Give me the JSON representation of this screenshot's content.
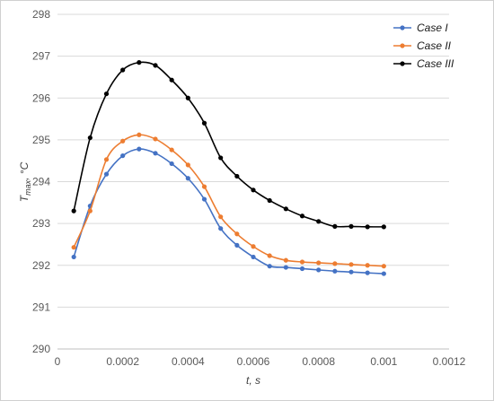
{
  "chart_data": {
    "type": "line",
    "title": "",
    "xlabel": "t, s",
    "ylabel_main": "T",
    "ylabel_sub": "max",
    "ylabel_unit": ", °C",
    "xlim": [
      0,
      0.0012
    ],
    "ylim": [
      290,
      298
    ],
    "x_ticks": [
      0,
      0.0002,
      0.0004,
      0.0006,
      0.0008,
      0.001,
      0.0012
    ],
    "x_tick_labels": [
      "0",
      "0.0002",
      "0.0004",
      "0.0006",
      "0.0008",
      "0.001",
      "0.0012"
    ],
    "y_ticks": [
      290,
      291,
      292,
      293,
      294,
      295,
      296,
      297,
      298
    ],
    "y_tick_labels": [
      "290",
      "291",
      "292",
      "293",
      "294",
      "295",
      "296",
      "297",
      "298"
    ],
    "grid": "horizontal",
    "legend_position": "top-right",
    "x": [
      5e-05,
      0.0001,
      0.00015,
      0.0002,
      0.00025,
      0.0003,
      0.00035,
      0.0004,
      0.00045,
      0.0005,
      0.00055,
      0.0006,
      0.00065,
      0.0007,
      0.00075,
      0.0008,
      0.00085,
      0.0009,
      0.00095,
      0.001
    ],
    "series": [
      {
        "name": "Case I",
        "color": "#4472c4",
        "values": [
          292.2,
          293.42,
          294.18,
          294.62,
          294.78,
          294.68,
          294.43,
          294.08,
          293.58,
          292.88,
          292.48,
          292.2,
          291.98,
          291.95,
          291.92,
          291.89,
          291.86,
          291.84,
          291.82,
          291.8
        ]
      },
      {
        "name": "Case II",
        "color": "#ed7d31",
        "values": [
          292.43,
          293.3,
          294.53,
          294.97,
          295.12,
          295.02,
          294.76,
          294.4,
          293.88,
          293.16,
          292.75,
          292.45,
          292.23,
          292.12,
          292.08,
          292.06,
          292.04,
          292.02,
          292.0,
          291.98
        ]
      },
      {
        "name": "Case III",
        "color": "#000000",
        "values": [
          293.3,
          295.05,
          296.1,
          296.67,
          296.85,
          296.78,
          296.43,
          296.0,
          295.4,
          294.57,
          294.13,
          293.8,
          293.55,
          293.35,
          293.18,
          293.05,
          292.93,
          292.93,
          292.92,
          292.92
        ]
      }
    ]
  }
}
